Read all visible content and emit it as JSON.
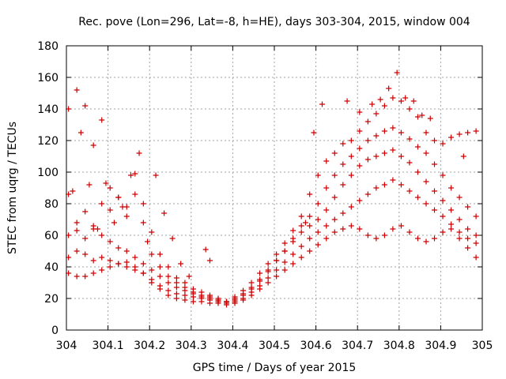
{
  "chart_data": {
    "type": "scatter",
    "title": "Rec. pove (Lon=296, Lat=-8, h=HE), days 303-304, 2015, window 004",
    "xlabel": "GPS time / Days of year 2015",
    "ylabel": "STEC from uqrg / TECUs",
    "xlim": [
      304,
      305
    ],
    "ylim": [
      0,
      180
    ],
    "x_ticks": [
      304,
      304.1,
      304.2,
      304.3,
      304.4,
      304.5,
      304.6,
      304.7,
      304.8,
      304.9,
      305
    ],
    "x_tick_labels": [
      "304",
      "304.1",
      "304.2",
      "304.3",
      "304.4",
      "304.5",
      "304.6",
      "304.7",
      "304.8",
      "304.9",
      "305"
    ],
    "y_ticks": [
      0,
      20,
      40,
      60,
      80,
      100,
      120,
      140,
      160,
      180
    ],
    "y_tick_labels": [
      "0",
      "20",
      "40",
      "60",
      "80",
      "100",
      "120",
      "140",
      "160",
      "180"
    ],
    "grid": true,
    "marker": "+",
    "color": "#cc0000",
    "series": [
      {
        "x": [
          304.005,
          304.025,
          304.045,
          304.065,
          304.085,
          304.105,
          304.125,
          304.145,
          304.165,
          304.185,
          304.205,
          304.225,
          304.245,
          304.265,
          304.285,
          304.305,
          304.325,
          304.345,
          304.365,
          304.385,
          304.405,
          304.425,
          304.445,
          304.465,
          304.485,
          304.505,
          304.525,
          304.545,
          304.565,
          304.585,
          304.605,
          304.625,
          304.645,
          304.665,
          304.685,
          304.705,
          304.725,
          304.745,
          304.765,
          304.785,
          304.805,
          304.825,
          304.845,
          304.865,
          304.885,
          304.905,
          304.925,
          304.945,
          304.965,
          304.985
        ],
        "y": [
          140,
          152,
          142,
          117,
          133,
          90,
          84,
          78,
          99,
          80,
          62,
          48,
          40,
          33,
          30,
          26,
          24,
          22,
          20,
          18,
          21,
          25,
          30,
          36,
          42,
          48,
          55,
          63,
          72,
          86,
          98,
          107,
          112,
          118,
          120,
          126,
          132,
          137,
          142,
          147,
          145,
          140,
          135,
          125,
          120,
          118,
          122,
          124,
          125,
          126
        ]
      },
      {
        "x": [
          304.005,
          304.025,
          304.045,
          304.065,
          304.085,
          304.105,
          304.125,
          304.145,
          304.165,
          304.185,
          304.205,
          304.225,
          304.245,
          304.265,
          304.285,
          304.305,
          304.325,
          304.345,
          304.365,
          304.385,
          304.405,
          304.425,
          304.445,
          304.465,
          304.485,
          304.505,
          304.525,
          304.545,
          304.565,
          304.585,
          304.605,
          304.625,
          304.645,
          304.665,
          304.685,
          304.705,
          304.725,
          304.745,
          304.765,
          304.785,
          304.805,
          304.825,
          304.845,
          304.865,
          304.885,
          304.905,
          304.925,
          304.945,
          304.965,
          304.985
        ],
        "y": [
          86,
          68,
          75,
          66,
          80,
          76,
          84,
          72,
          86,
          68,
          48,
          40,
          34,
          30,
          27,
          24,
          22,
          21,
          19,
          18,
          19,
          22,
          26,
          31,
          37,
          44,
          50,
          58,
          66,
          72,
          80,
          90,
          98,
          105,
          110,
          115,
          120,
          123,
          126,
          128,
          125,
          121,
          116,
          112,
          105,
          98,
          90,
          84,
          78,
          72
        ]
      },
      {
        "x": [
          304.005,
          304.025,
          304.045,
          304.065,
          304.085,
          304.105,
          304.125,
          304.145,
          304.165,
          304.185,
          304.205,
          304.225,
          304.245,
          304.265,
          304.285,
          304.305,
          304.325,
          304.345,
          304.365,
          304.385,
          304.405,
          304.425,
          304.445,
          304.465,
          304.485,
          304.505,
          304.525,
          304.545,
          304.565,
          304.585,
          304.605,
          304.625,
          304.645,
          304.665,
          304.685,
          304.705,
          304.725,
          304.745,
          304.765,
          304.785,
          304.805,
          304.825,
          304.845,
          304.865,
          304.885,
          304.905,
          304.925,
          304.945,
          304.965,
          304.985
        ],
        "y": [
          60,
          63,
          58,
          64,
          60,
          56,
          52,
          50,
          46,
          42,
          38,
          34,
          30,
          27,
          25,
          23,
          21,
          20,
          19,
          18,
          20,
          23,
          27,
          32,
          38,
          44,
          50,
          56,
          62,
          66,
          70,
          76,
          84,
          92,
          98,
          104,
          108,
          110,
          112,
          114,
          110,
          106,
          100,
          94,
          88,
          82,
          76,
          70,
          64,
          60
        ]
      },
      {
        "x": [
          304.005,
          304.025,
          304.045,
          304.065,
          304.085,
          304.105,
          304.125,
          304.145,
          304.165,
          304.185,
          304.205,
          304.225,
          304.245,
          304.265,
          304.285,
          304.305,
          304.325,
          304.345,
          304.365,
          304.385,
          304.405,
          304.425,
          304.445,
          304.465,
          304.485,
          304.505,
          304.525,
          304.545,
          304.565,
          304.585,
          304.605,
          304.625,
          304.645,
          304.665,
          304.685,
          304.705,
          304.725,
          304.745,
          304.765,
          304.785,
          304.805,
          304.825,
          304.845,
          304.865,
          304.885,
          304.905,
          304.925,
          304.945,
          304.965,
          304.985
        ],
        "y": [
          46,
          50,
          48,
          44,
          46,
          44,
          42,
          40,
          38,
          36,
          32,
          28,
          25,
          23,
          22,
          21,
          20,
          19,
          18,
          17,
          18,
          20,
          24,
          28,
          33,
          38,
          43,
          48,
          53,
          58,
          62,
          66,
          70,
          74,
          78,
          82,
          86,
          90,
          92,
          95,
          92,
          88,
          84,
          80,
          76,
          72,
          67,
          62,
          58,
          55
        ]
      },
      {
        "x": [
          304.005,
          304.025,
          304.045,
          304.065,
          304.085,
          304.105,
          304.125,
          304.145,
          304.165,
          304.185,
          304.205,
          304.225,
          304.245,
          304.265,
          304.285,
          304.305,
          304.325,
          304.345,
          304.365,
          304.385,
          304.405,
          304.425,
          304.445,
          304.465,
          304.485,
          304.505,
          304.525,
          304.545,
          304.565,
          304.585,
          304.605,
          304.625,
          304.645,
          304.665,
          304.685,
          304.705,
          304.725,
          304.745,
          304.765,
          304.785,
          304.805,
          304.825,
          304.845,
          304.865,
          304.885,
          304.905,
          304.925,
          304.945,
          304.965,
          304.985
        ],
        "y": [
          36,
          34,
          34,
          36,
          38,
          40,
          42,
          43,
          40,
          36,
          30,
          26,
          22,
          20,
          19,
          18,
          18,
          17,
          17,
          16,
          17,
          19,
          22,
          26,
          30,
          34,
          38,
          42,
          46,
          50,
          54,
          58,
          62,
          64,
          66,
          64,
          60,
          58,
          60,
          64,
          66,
          62,
          58,
          56,
          58,
          62,
          64,
          58,
          52,
          46
        ]
      },
      {
        "x": [
          304.015,
          304.035,
          304.055,
          304.075,
          304.095,
          304.115,
          304.135,
          304.155,
          304.175,
          304.195,
          304.215,
          304.235,
          304.255,
          304.275,
          304.295,
          304.335,
          304.345,
          304.575,
          304.595,
          304.615,
          304.675,
          304.705,
          304.735,
          304.755,
          304.775,
          304.795,
          304.815,
          304.835,
          304.855,
          304.875,
          304.955
        ],
        "y": [
          88,
          125,
          92,
          64,
          93,
          68,
          78,
          98,
          112,
          56,
          98,
          74,
          58,
          42,
          34,
          51,
          44,
          68,
          125,
          143,
          145,
          138,
          143,
          146,
          153,
          163,
          147,
          145,
          136,
          134,
          110
        ]
      }
    ]
  }
}
